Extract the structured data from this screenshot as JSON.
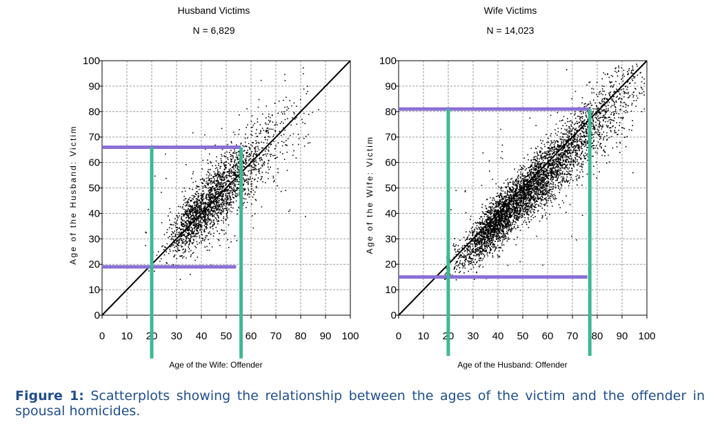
{
  "chart_data": [
    {
      "type": "scatter",
      "title": "Husband Victims",
      "subtitle": "N = 6,829",
      "xlabel": "Age of the Wife: Offender",
      "ylabel": "Age of the Husband: Victim",
      "xlim": [
        0,
        100
      ],
      "ylim": [
        0,
        100
      ],
      "xticks": [
        "0",
        "10",
        "20",
        "30",
        "40",
        "50",
        "60",
        "70",
        "80",
        "90",
        "100"
      ],
      "yticks": [
        "0",
        "10",
        "20",
        "30",
        "40",
        "50",
        "60",
        "70",
        "80",
        "90",
        "100"
      ],
      "grid": true,
      "reference_line": {
        "from": [
          0,
          0
        ],
        "to": [
          100,
          100
        ]
      },
      "distribution": {
        "n": 6829,
        "slope": 0.92,
        "intercept": 4.5,
        "x_range": [
          17,
          70
        ],
        "x_center": 38,
        "spread": 5.5,
        "outlier_share": 0.06
      },
      "highlight_lines": [
        {
          "orientation": "horizontal",
          "value": 66,
          "from": 0,
          "to": 56,
          "color": "#8b6fd6"
        },
        {
          "orientation": "horizontal",
          "value": 19,
          "from": 0,
          "to": 54,
          "color": "#8b6fd6"
        },
        {
          "orientation": "vertical",
          "value": 20,
          "from": -17,
          "to": 66,
          "color": "#3db894"
        },
        {
          "orientation": "vertical",
          "value": 56,
          "from": -17,
          "to": 66,
          "color": "#3db894"
        }
      ]
    },
    {
      "type": "scatter",
      "title": "Wife Victims",
      "subtitle": "N = 14,023",
      "xlabel": "Age of the Husband: Offender",
      "ylabel": "Age of the Wife: Victim",
      "xlim": [
        0,
        100
      ],
      "ylim": [
        0,
        100
      ],
      "xticks": [
        "0",
        "10",
        "20",
        "30",
        "40",
        "50",
        "60",
        "70",
        "80",
        "90",
        "100"
      ],
      "yticks": [
        "0",
        "10",
        "20",
        "30",
        "40",
        "50",
        "60",
        "70",
        "80",
        "90",
        "100"
      ],
      "grid": true,
      "reference_line": {
        "from": [
          0,
          0
        ],
        "to": [
          100,
          100
        ]
      },
      "distribution": {
        "n": 14023,
        "slope": 0.96,
        "intercept": -1,
        "x_range": [
          18,
          95
        ],
        "x_center": 42,
        "spread": 5.0,
        "outlier_share": 0.04
      },
      "highlight_lines": [
        {
          "orientation": "horizontal",
          "value": 81,
          "from": 0,
          "to": 77,
          "color": "#8b6fd6"
        },
        {
          "orientation": "horizontal",
          "value": 15,
          "from": 0,
          "to": 76,
          "color": "#8b6fd6"
        },
        {
          "orientation": "vertical",
          "value": 20,
          "from": -16,
          "to": 81,
          "color": "#3db894"
        },
        {
          "orientation": "vertical",
          "value": 77,
          "from": -16,
          "to": 81,
          "color": "#3db894"
        }
      ]
    }
  ],
  "caption": {
    "label": "Figure 1:",
    "text": "Scatterplots showing the relationship between the ages of the victim and the offender in spousal homicides."
  }
}
